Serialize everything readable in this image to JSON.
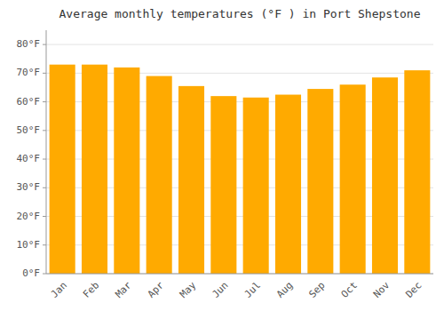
{
  "chart_data": {
    "type": "bar",
    "title": "Average monthly temperatures (°F ) in Port Shepstone",
    "categories": [
      "Jan",
      "Feb",
      "Mar",
      "Apr",
      "May",
      "Jun",
      "Jul",
      "Aug",
      "Sep",
      "Oct",
      "Nov",
      "Dec"
    ],
    "values": [
      73,
      73,
      72,
      69,
      65.5,
      62,
      61.5,
      62.5,
      64.5,
      66,
      68.5,
      71
    ],
    "color": "#FFAA00",
    "ylim": [
      0,
      85
    ],
    "yticks": [
      {
        "value": 0,
        "label": "0°F"
      },
      {
        "value": 10,
        "label": "10°F"
      },
      {
        "value": 20,
        "label": "20°F"
      },
      {
        "value": 30,
        "label": "30°F"
      },
      {
        "value": 40,
        "label": "40°F"
      },
      {
        "value": 50,
        "label": "50°F"
      },
      {
        "value": 60,
        "label": "60°F"
      },
      {
        "value": 70,
        "label": "70°F"
      },
      {
        "value": 80,
        "label": "80°F"
      }
    ],
    "grid": true
  }
}
